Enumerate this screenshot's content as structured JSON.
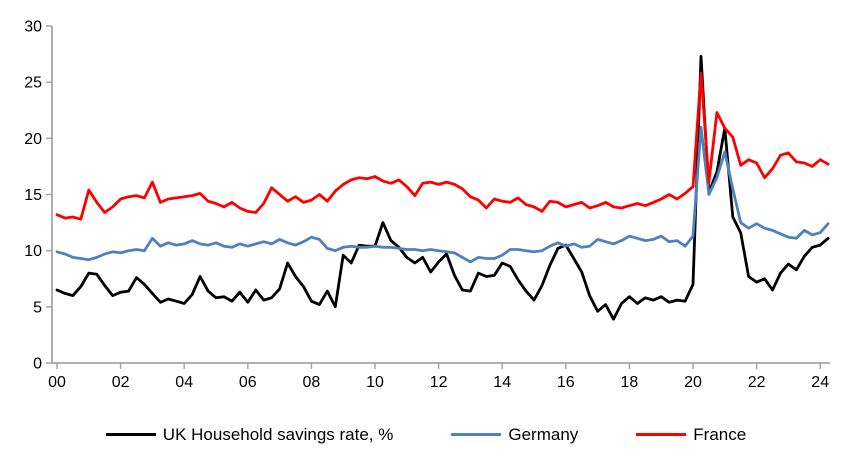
{
  "chart_data": {
    "type": "line",
    "x_start": "2000 Q1",
    "x_end": "2024 Q2",
    "points_per_year": 4,
    "x_tick_labels": [
      "00",
      "02",
      "04",
      "06",
      "08",
      "10",
      "12",
      "14",
      "16",
      "18",
      "20",
      "22",
      "24"
    ],
    "y_ticks": [
      0,
      5,
      10,
      15,
      20,
      25,
      30
    ],
    "ylim": [
      0,
      30
    ],
    "xlabel": "",
    "ylabel": "",
    "grid": false,
    "legend_position": "bottom",
    "axis_color": "#a6a6a6",
    "tick_label_color": "#000000",
    "series": [
      {
        "name": "UK Household savings rate, %",
        "color": "#000000",
        "values": [
          6.5,
          6.2,
          6.0,
          6.8,
          8.0,
          7.9,
          6.9,
          6.0,
          6.3,
          6.4,
          7.6,
          7.0,
          6.2,
          5.4,
          5.7,
          5.5,
          5.3,
          6.1,
          7.7,
          6.4,
          5.8,
          5.9,
          5.5,
          6.3,
          5.4,
          6.5,
          5.6,
          5.8,
          6.6,
          8.9,
          7.7,
          6.8,
          5.5,
          5.2,
          6.4,
          5.0,
          9.6,
          8.9,
          10.5,
          10.4,
          10.4,
          12.5,
          10.9,
          10.3,
          9.4,
          8.9,
          9.4,
          8.1,
          9.0,
          9.7,
          7.8,
          6.5,
          6.4,
          8.0,
          7.7,
          7.8,
          8.9,
          8.6,
          7.4,
          6.4,
          5.6,
          6.9,
          8.7,
          10.2,
          10.5,
          9.3,
          8.1,
          6.0,
          4.6,
          5.2,
          3.9,
          5.3,
          5.9,
          5.3,
          5.8,
          5.6,
          5.9,
          5.4,
          5.6,
          5.5,
          7.0,
          27.3,
          15.2,
          17.0,
          20.9,
          13.0,
          11.6,
          7.7,
          7.2,
          7.5,
          6.5,
          8.0,
          8.8,
          8.3,
          9.5,
          10.3,
          10.5,
          11.1
        ]
      },
      {
        "name": "Germany",
        "color": "#4f81bd",
        "values": [
          9.9,
          9.7,
          9.4,
          9.3,
          9.2,
          9.4,
          9.7,
          9.9,
          9.8,
          10.0,
          10.1,
          10.0,
          11.1,
          10.4,
          10.7,
          10.5,
          10.6,
          10.9,
          10.6,
          10.5,
          10.7,
          10.4,
          10.3,
          10.6,
          10.4,
          10.6,
          10.8,
          10.6,
          11.0,
          10.7,
          10.5,
          10.8,
          11.2,
          11.0,
          10.2,
          10.0,
          10.3,
          10.4,
          10.3,
          10.3,
          10.4,
          10.3,
          10.3,
          10.2,
          10.1,
          10.1,
          10.0,
          10.1,
          10.0,
          9.9,
          9.8,
          9.4,
          9.0,
          9.4,
          9.3,
          9.3,
          9.6,
          10.1,
          10.1,
          10.0,
          9.9,
          10.0,
          10.4,
          10.7,
          10.4,
          10.6,
          10.3,
          10.4,
          11.0,
          10.8,
          10.6,
          10.9,
          11.3,
          11.1,
          10.9,
          11.0,
          11.3,
          10.8,
          10.9,
          10.4,
          11.3,
          21.0,
          15.0,
          16.5,
          18.8,
          15.5,
          12.5,
          12.0,
          12.4,
          12.0,
          11.8,
          11.5,
          11.2,
          11.1,
          11.8,
          11.4,
          11.6,
          12.4
        ]
      },
      {
        "name": "France",
        "color": "#ff0000",
        "values": [
          13.2,
          12.9,
          13.0,
          12.8,
          15.4,
          14.3,
          13.4,
          13.9,
          14.6,
          14.8,
          14.9,
          14.7,
          16.1,
          14.3,
          14.6,
          14.7,
          14.8,
          14.9,
          15.1,
          14.4,
          14.2,
          13.9,
          14.3,
          13.8,
          13.5,
          13.4,
          14.2,
          15.6,
          15.0,
          14.4,
          14.8,
          14.3,
          14.5,
          15.0,
          14.4,
          15.3,
          15.9,
          16.3,
          16.5,
          16.4,
          16.6,
          16.2,
          16.0,
          16.3,
          15.7,
          14.9,
          16.0,
          16.1,
          15.9,
          16.1,
          15.9,
          15.5,
          14.8,
          14.5,
          13.8,
          14.6,
          14.4,
          14.3,
          14.7,
          14.1,
          13.9,
          13.5,
          14.4,
          14.3,
          13.9,
          14.1,
          14.3,
          13.8,
          14.0,
          14.3,
          13.9,
          13.8,
          14.0,
          14.2,
          14.0,
          14.3,
          14.6,
          15.0,
          14.6,
          15.1,
          15.7,
          25.8,
          16.1,
          22.3,
          20.9,
          20.1,
          17.6,
          18.1,
          17.8,
          16.5,
          17.3,
          18.5,
          18.7,
          17.9,
          17.8,
          17.5,
          18.1,
          17.7
        ]
      }
    ]
  },
  "legend": {
    "uk_label": "UK Household savings rate, %",
    "germany_label": "Germany",
    "france_label": "France"
  }
}
